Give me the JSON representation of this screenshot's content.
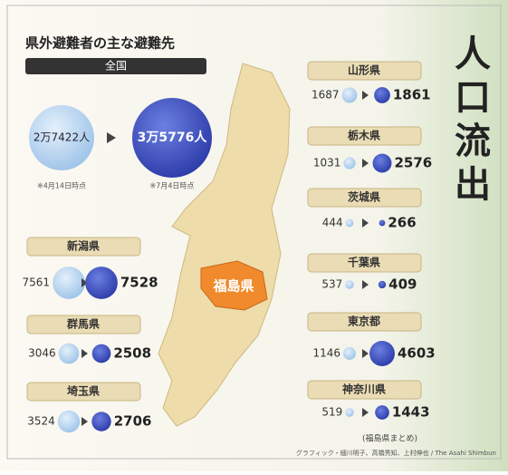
{
  "title": "県外避難者の主な避難先",
  "vertical_title": "人口流出",
  "national": {
    "label": "全国",
    "before": "2万7422人",
    "after": "3万5776人",
    "before_note": "※4月14日時点",
    "after_note": "※7月4日時点"
  },
  "map_label": "福島県",
  "prefectures": [
    {
      "name": "新潟県",
      "before": 7561,
      "after": 7528
    },
    {
      "name": "群馬県",
      "before": 3046,
      "after": 2508
    },
    {
      "name": "埼玉県",
      "before": 3524,
      "after": 2706
    },
    {
      "name": "山形県",
      "before": 1687,
      "after": 1861
    },
    {
      "name": "栃木県",
      "before": 1031,
      "after": 2576
    },
    {
      "name": "茨城県",
      "before": 444,
      "after": 266
    },
    {
      "name": "千葉県",
      "before": 537,
      "after": 409
    },
    {
      "name": "東京都",
      "before": 1146,
      "after": 4603
    },
    {
      "name": "神奈川県",
      "before": 519,
      "after": 1443
    }
  ],
  "source": "(福島県まとめ)",
  "credit": "グラフィック・細川明子、高橋秀知、上村伸也 / The Asahi Shimbun"
}
